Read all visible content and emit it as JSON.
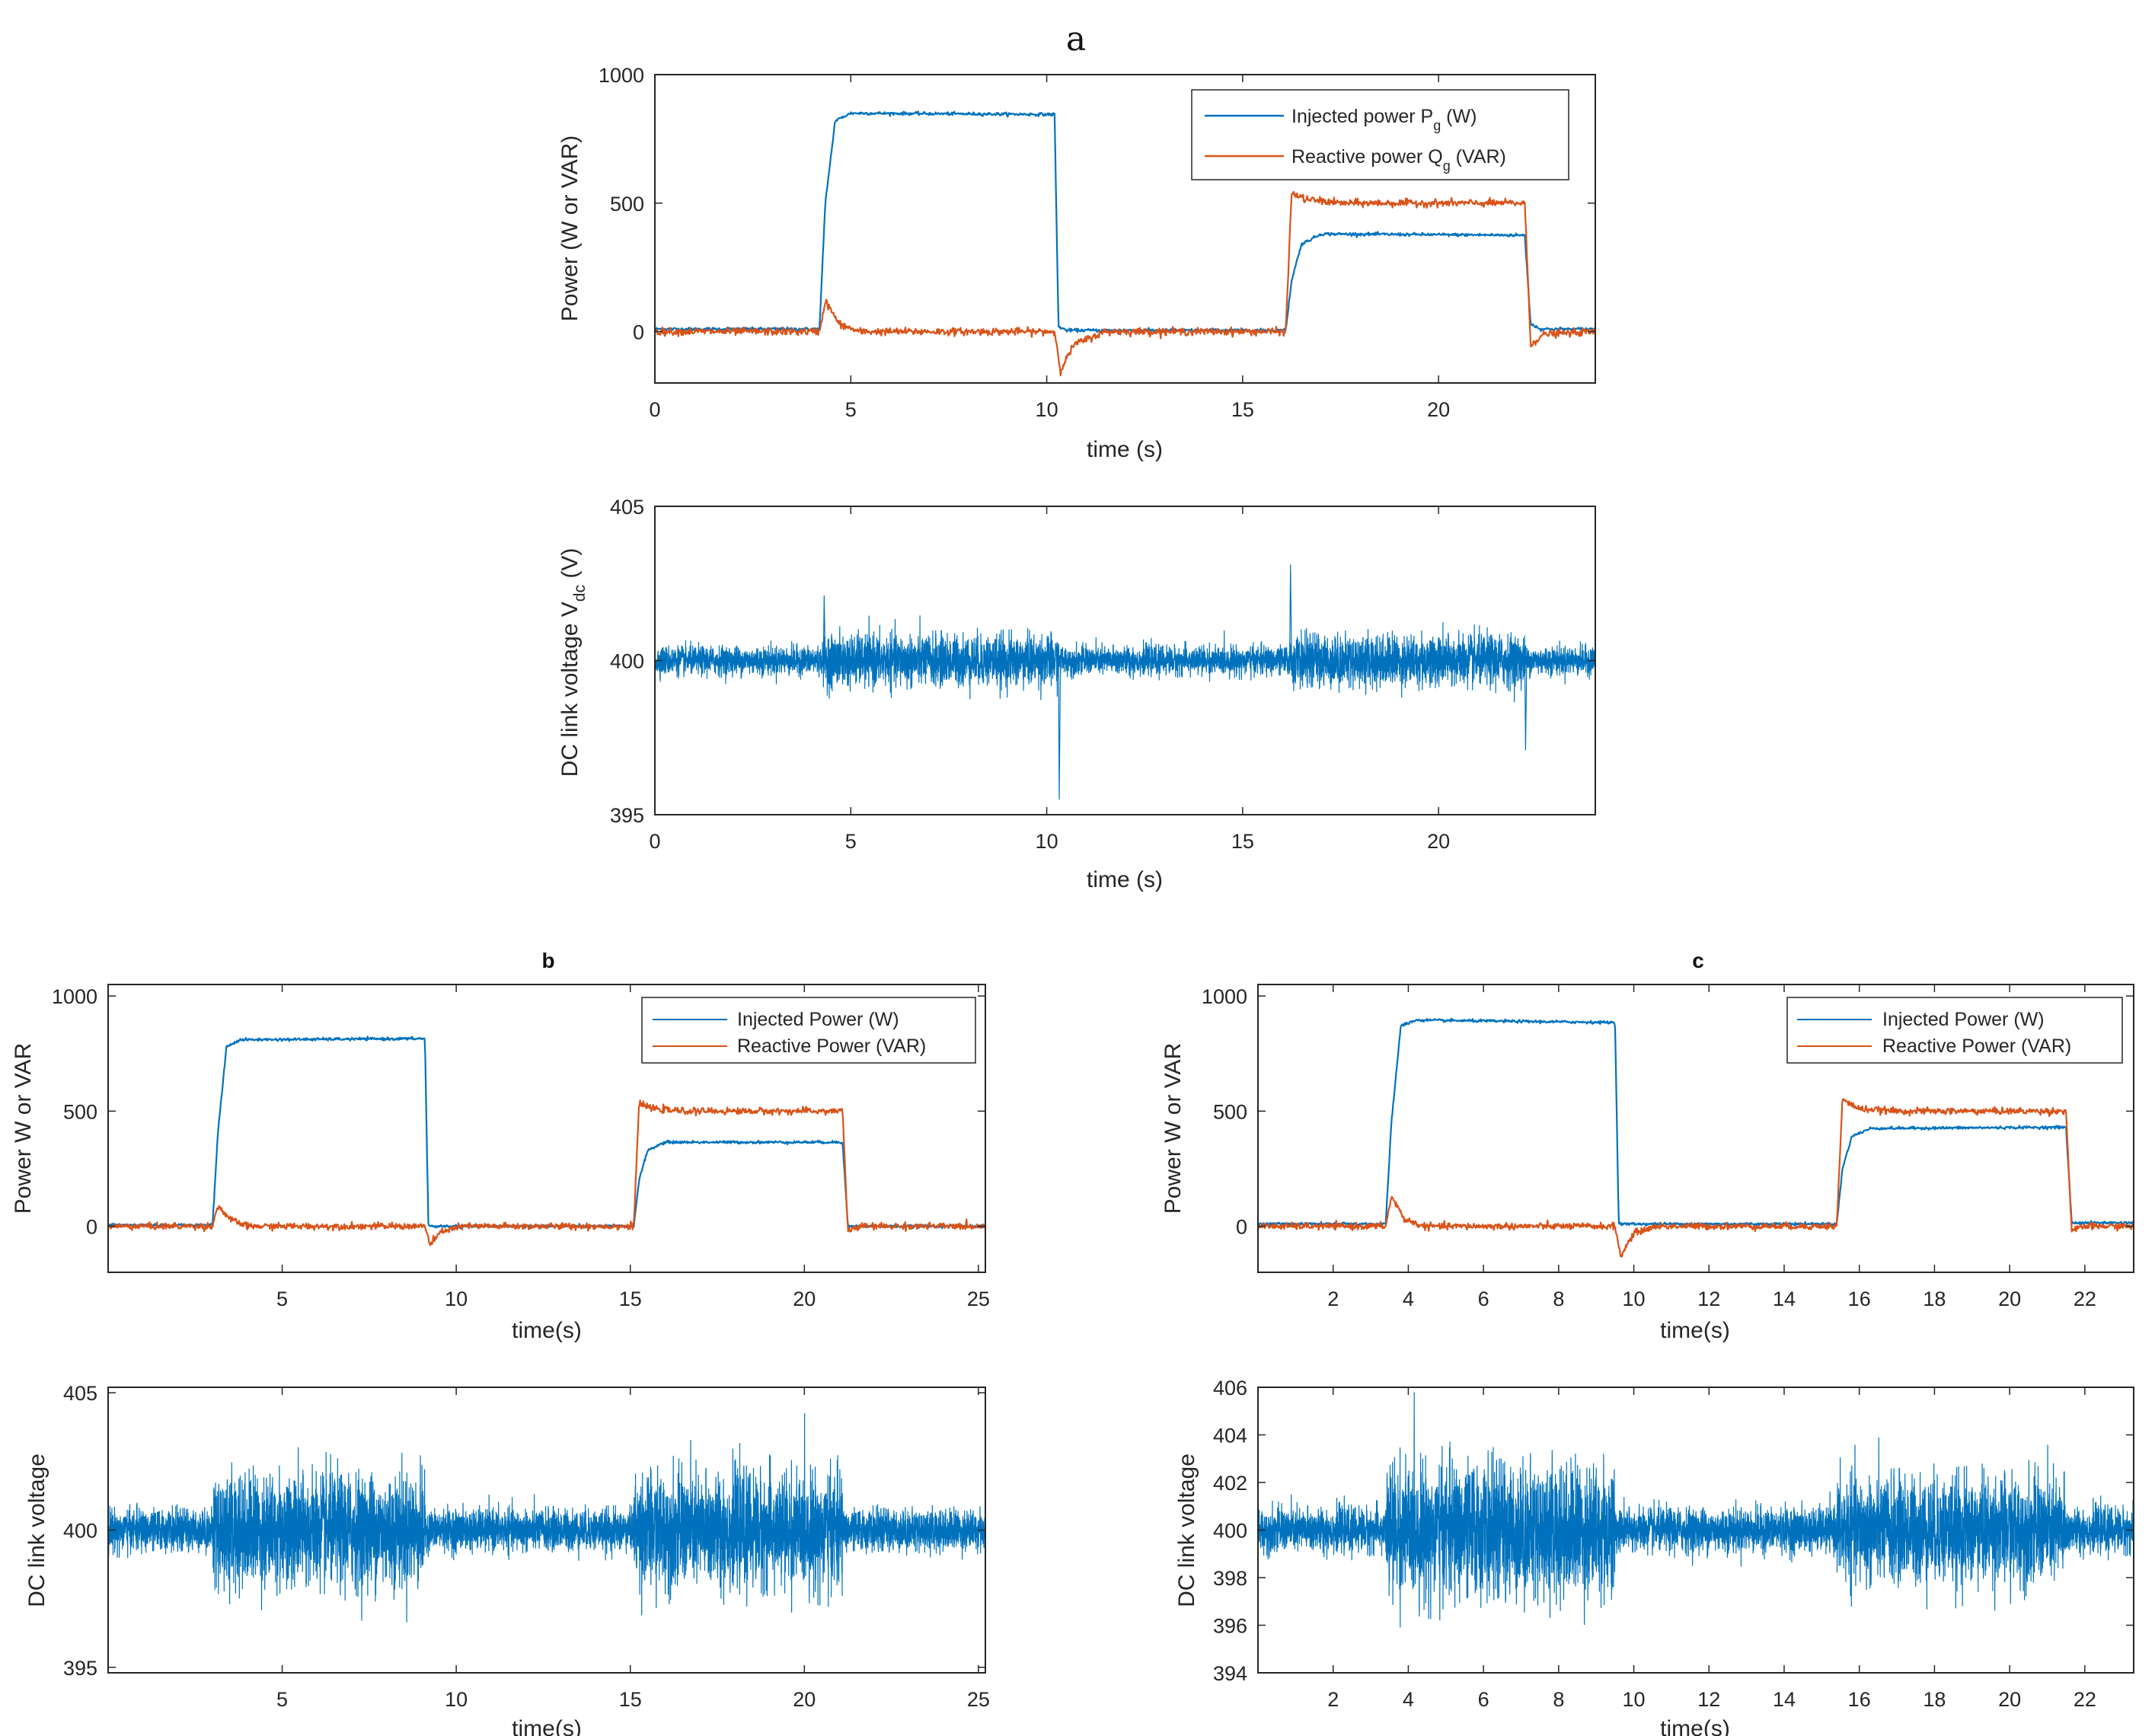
{
  "colors": {
    "series1": "#0072BD",
    "series2": "#D95319"
  },
  "panels": [
    {
      "id": "a",
      "title": "a",
      "top": {
        "xlabel": "time (s)",
        "ylabel": "Power (W or VAR)",
        "xlim": [
          0,
          24
        ],
        "ylim": [
          -200,
          1000
        ],
        "xticks": [
          0,
          5,
          10,
          15,
          20
        ],
        "yticks": [
          0,
          500,
          1000
        ],
        "legend": [
          {
            "label": "Injected power P",
            "sub": "g",
            "unit": " (W)"
          },
          {
            "label": "Reactive power Q",
            "sub": "g",
            "unit": " (VAR)"
          }
        ]
      },
      "bottom": {
        "xlabel": "time (s)",
        "ylabel": "DC link voltage V",
        "ylabel_sub": "dc",
        "ylabel_unit": " (V)",
        "xlim": [
          0,
          24
        ],
        "ylim": [
          395,
          405
        ],
        "xticks": [
          0,
          5,
          10,
          15,
          20
        ],
        "yticks": [
          395,
          400,
          405
        ]
      }
    },
    {
      "id": "b",
      "title": "b",
      "top": {
        "xlabel": "time(s)",
        "ylabel": "Power W or VAR",
        "xlim": [
          0,
          25.2
        ],
        "ylim": [
          -200,
          1050
        ],
        "xticks": [
          5,
          10,
          15,
          20,
          25
        ],
        "yticks": [
          0,
          500,
          1000
        ],
        "legend": [
          {
            "label": "Injected Power (W)"
          },
          {
            "label": "Reactive Power (VAR)"
          }
        ]
      },
      "bottom": {
        "xlabel": "time(s)",
        "ylabel": "DC link voltage",
        "xlim": [
          0,
          25.2
        ],
        "ylim": [
          394.8,
          405.2
        ],
        "xticks": [
          5,
          10,
          15,
          20,
          25
        ],
        "yticks": [
          395,
          400,
          405
        ]
      }
    },
    {
      "id": "c",
      "title": "c",
      "top": {
        "xlabel": "time(s)",
        "ylabel": "Power W or VAR",
        "xlim": [
          0,
          23.3
        ],
        "ylim": [
          -200,
          1050
        ],
        "xticks": [
          2,
          4,
          6,
          8,
          10,
          12,
          14,
          16,
          18,
          20,
          22
        ],
        "yticks": [
          0,
          500,
          1000
        ],
        "legend": [
          {
            "label": "Injected Power (W)"
          },
          {
            "label": "Reactive Power (VAR)"
          }
        ]
      },
      "bottom": {
        "xlabel": "time(s)",
        "ylabel": "DC link voltage",
        "xlim": [
          0,
          23.3
        ],
        "ylim": [
          394,
          406
        ],
        "xticks": [
          2,
          4,
          6,
          8,
          10,
          12,
          14,
          16,
          18,
          20,
          22
        ],
        "yticks": [
          394,
          396,
          398,
          400,
          402,
          404,
          406
        ]
      }
    }
  ],
  "chart_data": [
    {
      "panel": "a-top",
      "type": "line",
      "series": [
        {
          "name": "Injected power Pg (W)",
          "x": [
            0,
            4.2,
            4.35,
            4.6,
            5.0,
            10.2,
            10.3,
            10.5,
            16.1,
            16.25,
            16.5,
            17.0,
            22.2,
            22.35,
            22.6,
            24
          ],
          "y": [
            10,
            10,
            500,
            820,
            850,
            845,
            20,
            5,
            5,
            200,
            340,
            380,
            375,
            30,
            10,
            10
          ]
        },
        {
          "name": "Reactive power Qg (VAR)",
          "x": [
            0,
            4.2,
            4.35,
            4.7,
            5.2,
            10.2,
            10.35,
            10.7,
            11.5,
            16.1,
            16.25,
            16.6,
            17.5,
            22.2,
            22.35,
            22.7,
            24
          ],
          "y": [
            0,
            0,
            120,
            30,
            0,
            0,
            -150,
            -50,
            0,
            0,
            540,
            515,
            500,
            500,
            -50,
            -10,
            0
          ]
        }
      ]
    },
    {
      "panel": "a-bottom",
      "type": "line",
      "series": [
        {
          "name": "DC link voltage Vdc (V)",
          "segments": [
            {
              "x": [
                0,
                4.3
              ],
              "mean": 400,
              "noise": 0.5
            },
            {
              "x": [
                4.3,
                10.3
              ],
              "mean": 400,
              "noise": 0.9
            },
            {
              "x": [
                10.3,
                16.2
              ],
              "mean": 400,
              "noise": 0.5
            },
            {
              "x": [
                16.2,
                22.2
              ],
              "mean": 400,
              "noise": 0.9
            },
            {
              "x": [
                22.2,
                24
              ],
              "mean": 400,
              "noise": 0.5
            }
          ],
          "spikes": [
            {
              "x": 4.3,
              "y": 402.1
            },
            {
              "x": 10.3,
              "y": 395.5
            },
            {
              "x": 16.2,
              "y": 403.1
            },
            {
              "x": 22.2,
              "y": 397.1
            }
          ]
        }
      ]
    },
    {
      "panel": "b-top",
      "type": "line",
      "series": [
        {
          "name": "Injected Power (W)",
          "x": [
            0,
            3.0,
            3.15,
            3.4,
            3.8,
            9.1,
            9.2,
            15.1,
            15.25,
            15.5,
            16.0,
            21.1,
            21.25,
            25.2
          ],
          "y": [
            5,
            5,
            400,
            780,
            810,
            815,
            0,
            0,
            200,
            330,
            365,
            365,
            0,
            0
          ]
        },
        {
          "name": "Reactive Power (VAR)",
          "x": [
            0,
            3.0,
            3.15,
            3.5,
            4.0,
            9.1,
            9.25,
            9.6,
            10.2,
            15.1,
            15.25,
            15.7,
            16.5,
            21.1,
            21.25,
            21.6,
            25.2
          ],
          "y": [
            0,
            0,
            90,
            30,
            0,
            0,
            -80,
            -20,
            0,
            0,
            530,
            510,
            500,
            500,
            -20,
            0,
            0
          ]
        }
      ]
    },
    {
      "panel": "b-bottom",
      "type": "line",
      "series": [
        {
          "name": "DC link voltage",
          "segments": [
            {
              "x": [
                0,
                3.0
              ],
              "mean": 400,
              "noise": 0.8
            },
            {
              "x": [
                3.0,
                9.1
              ],
              "mean": 400,
              "noise": 2.2
            },
            {
              "x": [
                9.1,
                15.1
              ],
              "mean": 400,
              "noise": 0.8
            },
            {
              "x": [
                15.1,
                21.1
              ],
              "mean": 400,
              "noise": 2.2
            },
            {
              "x": [
                21.1,
                25.2
              ],
              "mean": 400,
              "noise": 0.8
            }
          ]
        }
      ]
    },
    {
      "panel": "c-top",
      "type": "line",
      "series": [
        {
          "name": "Injected Power (W)",
          "x": [
            0,
            3.4,
            3.55,
            3.8,
            4.2,
            9.5,
            9.6,
            15.4,
            15.55,
            15.8,
            16.3,
            21.5,
            21.65,
            23.3
          ],
          "y": [
            10,
            10,
            450,
            870,
            895,
            885,
            10,
            10,
            250,
            390,
            425,
            430,
            15,
            15
          ]
        },
        {
          "name": "Reactive Power (VAR)",
          "x": [
            0,
            3.4,
            3.55,
            3.9,
            4.4,
            9.5,
            9.65,
            10.0,
            10.6,
            15.4,
            15.55,
            16.0,
            17.0,
            21.5,
            21.65,
            22.0,
            23.3
          ],
          "y": [
            0,
            0,
            130,
            30,
            0,
            0,
            -130,
            -30,
            0,
            0,
            550,
            510,
            500,
            500,
            -20,
            0,
            0
          ]
        }
      ]
    },
    {
      "panel": "c-bottom",
      "type": "line",
      "series": [
        {
          "name": "DC link voltage",
          "segments": [
            {
              "x": [
                0,
                3.4
              ],
              "mean": 400,
              "noise": 1.0
            },
            {
              "x": [
                3.4,
                9.5
              ],
              "mean": 400,
              "noise": 3.0
            },
            {
              "x": [
                9.5,
                15.4
              ],
              "mean": 400,
              "noise": 1.0
            },
            {
              "x": [
                15.4,
                21.5
              ],
              "mean": 400,
              "noise": 2.4
            },
            {
              "x": [
                21.5,
                23.3
              ],
              "mean": 400,
              "noise": 1.0
            }
          ]
        }
      ]
    }
  ]
}
